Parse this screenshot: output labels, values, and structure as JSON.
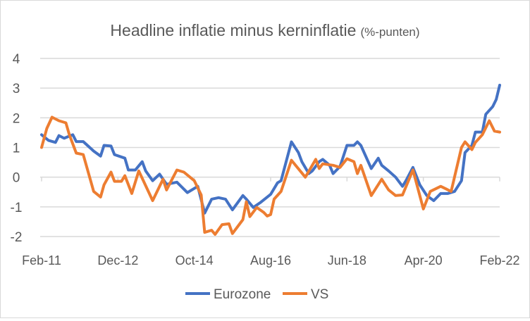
{
  "chart_data": {
    "type": "line",
    "title": "Headline inflatie minus kerninflatie",
    "subtitle": "(%-punten)",
    "xlabel": "",
    "ylabel": "",
    "ylim": [
      -2,
      4
    ],
    "yticks": [
      4,
      3,
      2,
      1,
      0,
      -1,
      -2
    ],
    "x_tick_labels": [
      {
        "month": 0,
        "label": "Feb-11"
      },
      {
        "month": 22,
        "label": "Dec-12"
      },
      {
        "month": 44,
        "label": "Oct-14"
      },
      {
        "month": 66,
        "label": "Aug-16"
      },
      {
        "month": 88,
        "label": "Jun-18"
      },
      {
        "month": 110,
        "label": "Apr-20"
      },
      {
        "month": 132,
        "label": "Feb-22"
      }
    ],
    "x_unit": "months since Feb-11",
    "xlim": [
      0,
      132
    ],
    "grid": true,
    "legend": "bottom",
    "series": [
      {
        "name": "Eurozone",
        "color": "#4472C4",
        "points": [
          [
            0,
            1.43
          ],
          [
            2,
            1.24
          ],
          [
            4,
            1.17
          ],
          [
            5,
            1.4
          ],
          [
            6.5,
            1.31
          ],
          [
            9,
            1.43
          ],
          [
            10,
            1.2
          ],
          [
            12,
            1.2
          ],
          [
            15,
            0.88
          ],
          [
            17,
            0.71
          ],
          [
            18,
            1.07
          ],
          [
            20,
            1.05
          ],
          [
            21,
            0.76
          ],
          [
            24,
            0.64
          ],
          [
            25,
            0.24
          ],
          [
            27,
            0.24
          ],
          [
            29,
            0.52
          ],
          [
            30,
            0.21
          ],
          [
            32,
            -0.12
          ],
          [
            34,
            0.1
          ],
          [
            36,
            -0.24
          ],
          [
            39,
            -0.17
          ],
          [
            42,
            -0.52
          ],
          [
            45,
            -0.31
          ],
          [
            47,
            -1.21
          ],
          [
            49,
            -0.74
          ],
          [
            51,
            -0.69
          ],
          [
            53,
            -0.74
          ],
          [
            55,
            -1.1
          ],
          [
            58,
            -0.62
          ],
          [
            59,
            -0.74
          ],
          [
            61,
            -1.02
          ],
          [
            63,
            -0.86
          ],
          [
            66,
            -0.58
          ],
          [
            68,
            -0.19
          ],
          [
            69,
            -0.12
          ],
          [
            72,
            1.19
          ],
          [
            74,
            0.83
          ],
          [
            75,
            0.52
          ],
          [
            77,
            0.12
          ],
          [
            78,
            0.21
          ],
          [
            80,
            0.52
          ],
          [
            81,
            0.6
          ],
          [
            83,
            0.4
          ],
          [
            84,
            0.12
          ],
          [
            86,
            0.36
          ],
          [
            88,
            1.07
          ],
          [
            90,
            1.07
          ],
          [
            91,
            1.19
          ],
          [
            92,
            1.07
          ],
          [
            95,
            0.29
          ],
          [
            97,
            0.64
          ],
          [
            98,
            0.4
          ],
          [
            100,
            0.21
          ],
          [
            102,
            0
          ],
          [
            104,
            -0.31
          ],
          [
            105,
            -0.12
          ],
          [
            107,
            0.33
          ],
          [
            109,
            -0.26
          ],
          [
            111,
            -0.62
          ],
          [
            113,
            -0.79
          ],
          [
            115,
            -0.55
          ],
          [
            117,
            -0.55
          ],
          [
            119,
            -0.48
          ],
          [
            121,
            -0.12
          ],
          [
            122,
            0.83
          ],
          [
            124,
            1.07
          ],
          [
            125,
            1.52
          ],
          [
            127,
            1.52
          ],
          [
            128,
            2.12
          ],
          [
            130,
            2.38
          ],
          [
            131,
            2.62
          ],
          [
            132,
            3.1
          ]
        ]
      },
      {
        "name": "VS",
        "color": "#ED7D31",
        "points": [
          [
            0,
            1.0
          ],
          [
            1.5,
            1.64
          ],
          [
            3,
            2.02
          ],
          [
            5,
            1.9
          ],
          [
            7,
            1.83
          ],
          [
            8,
            1.43
          ],
          [
            10,
            0.81
          ],
          [
            12,
            0.76
          ],
          [
            15,
            -0.48
          ],
          [
            17,
            -0.67
          ],
          [
            18,
            -0.26
          ],
          [
            20,
            0.17
          ],
          [
            21,
            -0.14
          ],
          [
            23,
            -0.14
          ],
          [
            24,
            0.05
          ],
          [
            26,
            -0.55
          ],
          [
            28,
            0.21
          ],
          [
            32,
            -0.79
          ],
          [
            35,
            -0.07
          ],
          [
            36,
            -0.43
          ],
          [
            39,
            0.24
          ],
          [
            41,
            0.17
          ],
          [
            44,
            -0.12
          ],
          [
            46,
            -0.6
          ],
          [
            47,
            -1.86
          ],
          [
            49,
            -1.79
          ],
          [
            50,
            -1.93
          ],
          [
            52,
            -1.6
          ],
          [
            54,
            -1.57
          ],
          [
            55,
            -1.9
          ],
          [
            58,
            -1.43
          ],
          [
            59,
            -0.83
          ],
          [
            60,
            -1.33
          ],
          [
            62,
            -1.02
          ],
          [
            64,
            -1.19
          ],
          [
            65,
            -1.31
          ],
          [
            66,
            -1.26
          ],
          [
            67,
            -0.74
          ],
          [
            69,
            -0.48
          ],
          [
            72,
            0.57
          ],
          [
            76,
            0
          ],
          [
            79,
            0.6
          ],
          [
            80,
            0.29
          ],
          [
            81,
            0.45
          ],
          [
            84,
            0.4
          ],
          [
            86,
            0.33
          ],
          [
            88,
            0.62
          ],
          [
            90,
            0.52
          ],
          [
            91,
            0.12
          ],
          [
            92,
            0.4
          ],
          [
            95,
            -0.62
          ],
          [
            98,
            -0.07
          ],
          [
            100,
            -0.43
          ],
          [
            102,
            -0.62
          ],
          [
            104,
            -0.6
          ],
          [
            107,
            0.24
          ],
          [
            110,
            -1.07
          ],
          [
            112,
            -0.48
          ],
          [
            115,
            -0.31
          ],
          [
            118,
            -0.48
          ],
          [
            121,
            1.0
          ],
          [
            122,
            1.19
          ],
          [
            124,
            0.93
          ],
          [
            125,
            1.17
          ],
          [
            127,
            1.43
          ],
          [
            129,
            1.9
          ],
          [
            130.5,
            1.55
          ],
          [
            132,
            1.52
          ]
        ]
      }
    ]
  }
}
